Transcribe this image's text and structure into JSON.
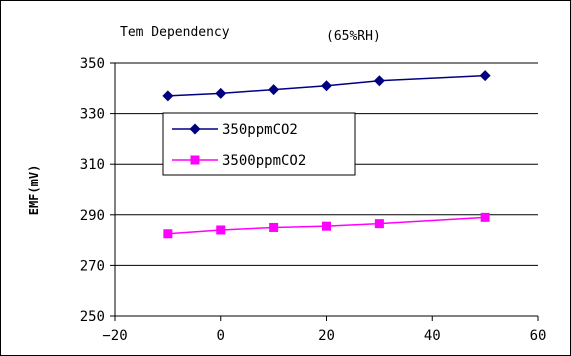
{
  "chart_data": {
    "type": "line",
    "title": "Tem Dependency",
    "subtitle": "(65%RH)",
    "xlabel": "",
    "ylabel": "EMF(mV)",
    "xlim": [
      -20,
      60
    ],
    "ylim": [
      250,
      350
    ],
    "x_ticks": [
      -20,
      0,
      20,
      40,
      60
    ],
    "y_ticks": [
      250,
      270,
      290,
      310,
      330,
      350
    ],
    "grid": "horizontal",
    "legend_position": "center-left",
    "x": [
      -10,
      0,
      10,
      20,
      30,
      50
    ],
    "series": [
      {
        "name": "350ppmCO2",
        "values": [
          337,
          338,
          339.5,
          341,
          343,
          345
        ],
        "color": "#000080",
        "marker": "diamond"
      },
      {
        "name": "3500ppmCO2",
        "values": [
          282.5,
          284,
          285,
          285.5,
          286.5,
          289
        ],
        "color": "#ff00ff",
        "marker": "square"
      }
    ]
  }
}
